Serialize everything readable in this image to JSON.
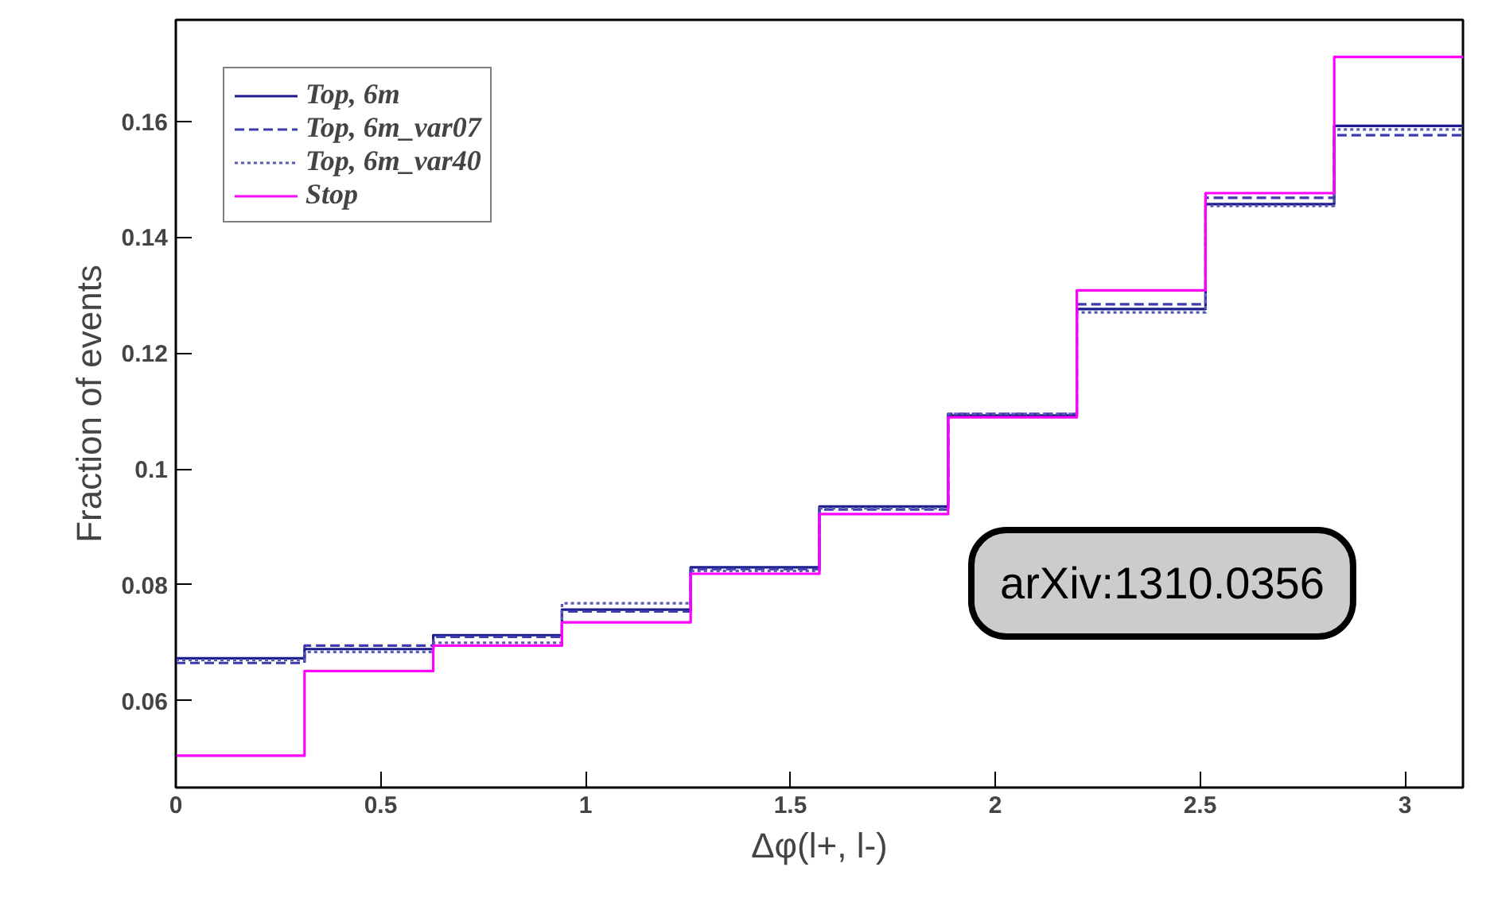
{
  "chart_data": {
    "type": "histogram",
    "xlabel": "Δφ(l+, l-)",
    "ylabel": "Fraction of events",
    "bins": [
      0,
      0.3142,
      0.6283,
      0.9425,
      1.2566,
      1.5708,
      1.885,
      2.1991,
      2.5133,
      2.8274,
      3.1416
    ],
    "series": [
      {
        "name": "Top, 6m",
        "color": "#1c1c8c",
        "line_style": "solid",
        "values": [
          0.0673,
          0.0689,
          0.0713,
          0.0757,
          0.083,
          0.0935,
          0.1092,
          0.1276,
          0.1457,
          0.1592
        ]
      },
      {
        "name": "Top, 6m_var07",
        "color": "#3c3cae",
        "line_style": "dashed",
        "values": [
          0.0665,
          0.0695,
          0.071,
          0.0754,
          0.0827,
          0.093,
          0.1095,
          0.1284,
          0.1468,
          0.1576
        ]
      },
      {
        "name": "Top, 6m_var40",
        "color": "#5a5ab8",
        "line_style": "dotted",
        "values": [
          0.067,
          0.0684,
          0.07,
          0.0768,
          0.0824,
          0.0932,
          0.1095,
          0.127,
          0.1454,
          0.1586
        ]
      },
      {
        "name": "Stop",
        "color": "#ff00ff",
        "line_style": "solid",
        "values": [
          0.0505,
          0.0651,
          0.0695,
          0.0735,
          0.0819,
          0.0922,
          0.1089,
          0.1308,
          0.1476,
          0.1711
        ]
      }
    ],
    "xlim": [
      0,
      3.1416
    ],
    "ylim": [
      0.045,
      0.1775
    ],
    "xticks": [
      0,
      0.5,
      1,
      1.5,
      2,
      2.5,
      3
    ],
    "yticks": [
      0.06,
      0.08,
      0.1,
      0.12,
      0.14,
      0.16
    ],
    "grid": false,
    "legend": "top left",
    "annotations": [
      "arXiv:1310.0356"
    ]
  }
}
